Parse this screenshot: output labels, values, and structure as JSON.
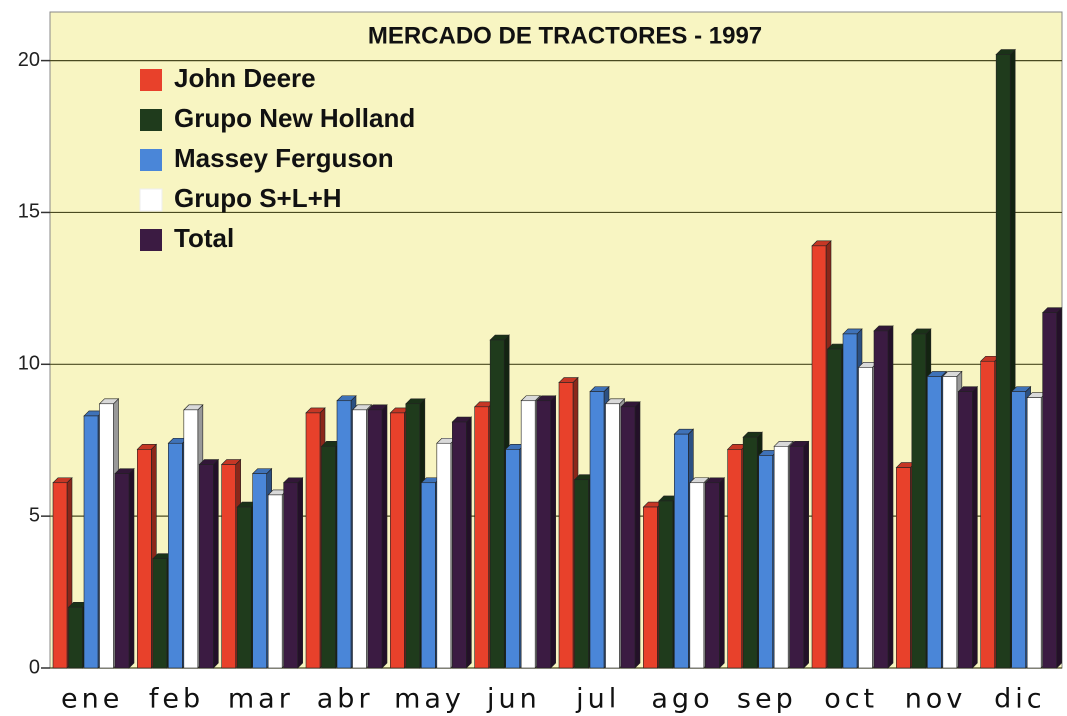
{
  "chart_data": {
    "type": "bar3d",
    "title": "MERCADO DE TRACTORES - 1997",
    "categories": [
      "ene",
      "feb",
      "mar",
      "abr",
      "may",
      "jun",
      "jul",
      "ago",
      "sep",
      "oct",
      "nov",
      "dic"
    ],
    "series": [
      {
        "name": "John Deere",
        "color": "#e8412b",
        "values": [
          6.1,
          7.2,
          6.7,
          8.4,
          8.4,
          8.6,
          9.4,
          5.3,
          7.2,
          13.9,
          6.6,
          10.1
        ]
      },
      {
        "name": "Grupo New Holland",
        "color": "#1f3b1c",
        "values": [
          2.0,
          3.6,
          5.3,
          7.3,
          8.7,
          10.8,
          6.2,
          5.5,
          7.6,
          10.5,
          11.0,
          20.2
        ]
      },
      {
        "name": "Massey Ferguson",
        "color": "#4a86d8",
        "values": [
          8.3,
          7.4,
          6.4,
          8.8,
          6.1,
          7.2,
          9.1,
          7.7,
          7.0,
          11.0,
          9.6,
          9.1
        ]
      },
      {
        "name": "Grupo S+L+H",
        "color": "#ffffff",
        "values": [
          8.7,
          8.5,
          5.7,
          8.5,
          7.4,
          8.8,
          8.7,
          6.1,
          7.3,
          9.9,
          9.6,
          8.9
        ]
      },
      {
        "name": "Total",
        "color": "#3b1b42",
        "values": [
          6.4,
          6.7,
          6.1,
          8.5,
          8.1,
          8.8,
          8.6,
          6.1,
          7.3,
          11.1,
          9.1,
          11.7
        ]
      }
    ],
    "ylim": [
      0,
      21.6
    ],
    "yticks": [
      0,
      5,
      10,
      15,
      20
    ],
    "grid": true
  }
}
